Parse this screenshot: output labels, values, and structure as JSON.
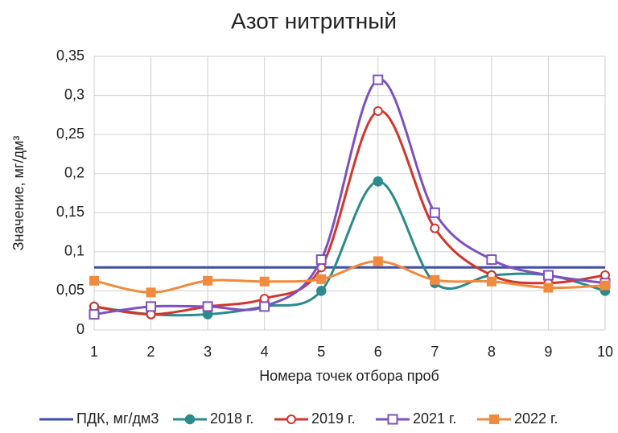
{
  "chart_data": {
    "type": "line",
    "title": "Азот нитритный",
    "x_label": "Номера точек отбора проб",
    "y_label": "Значение, мг/дм³",
    "x": [
      1,
      2,
      3,
      4,
      5,
      6,
      7,
      8,
      9,
      10
    ],
    "xlim": [
      1,
      10
    ],
    "xticks": [
      1,
      2,
      3,
      4,
      5,
      6,
      7,
      8,
      9,
      10
    ],
    "ylim": [
      0,
      0.35
    ],
    "yticks": [
      0,
      {
        "value": 0.05,
        "label": "0,05"
      },
      {
        "value": 0.1,
        "label": "0,1"
      },
      {
        "value": 0.15,
        "label": "0,15"
      },
      {
        "value": 0.2,
        "label": "0,2"
      },
      {
        "value": 0.25,
        "label": "0,25"
      },
      {
        "value": 0.3,
        "label": "0,3"
      },
      {
        "value": 0.35,
        "label": "0,35"
      }
    ],
    "grid": true,
    "smooth": true,
    "legend": "bottom",
    "series": [
      {
        "name": "ПДК, мг/дм3",
        "color": "#3e4ea8",
        "marker": "none",
        "values": [
          0.08,
          0.08,
          0.08,
          0.08,
          0.08,
          0.08,
          0.08,
          0.08,
          0.08,
          0.08
        ]
      },
      {
        "name": "2018 г.",
        "color": "#2a8a8c",
        "marker": "circle-filled",
        "values": [
          0.03,
          0.02,
          0.02,
          0.03,
          0.05,
          0.19,
          0.06,
          0.07,
          0.07,
          0.05
        ]
      },
      {
        "name": "2019 г.",
        "color": "#d2352c",
        "marker": "circle-open",
        "values": [
          0.03,
          0.02,
          0.03,
          0.04,
          0.08,
          0.28,
          0.13,
          0.07,
          0.06,
          0.07
        ]
      },
      {
        "name": "2021 г.",
        "color": "#7d50c0",
        "marker": "square-open",
        "values": [
          0.02,
          0.03,
          0.03,
          0.03,
          0.09,
          0.32,
          0.15,
          0.09,
          0.07,
          0.06
        ]
      },
      {
        "name": "2022 г.",
        "color": "#f08a3e",
        "marker": "square-filled",
        "values": [
          0.063,
          0.048,
          0.063,
          0.062,
          0.065,
          0.088,
          0.064,
          0.062,
          0.054,
          0.057
        ]
      }
    ]
  }
}
